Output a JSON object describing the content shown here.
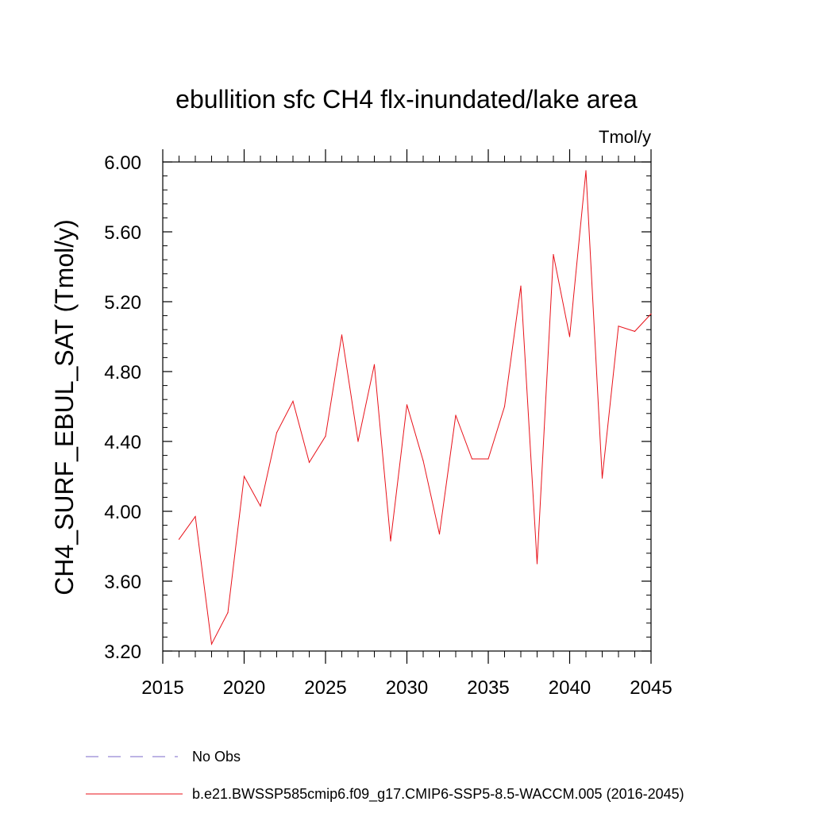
{
  "chart_data": {
    "type": "line",
    "title": "ebullition sfc CH4 flx-inundated/lake area",
    "units": "Tmol/y",
    "ylabel": "CH4_SURF_EBUL_SAT  (Tmol/y)",
    "xlabel": "",
    "xlim": [
      2015,
      2045
    ],
    "ylim": [
      3.2,
      6.0
    ],
    "xticks": [
      2015,
      2020,
      2025,
      2030,
      2035,
      2040,
      2045
    ],
    "xtick_labels": [
      "2015",
      "2020",
      "2025",
      "2030",
      "2035",
      "2040",
      "2045"
    ],
    "yticks": [
      3.2,
      3.6,
      4.0,
      4.4,
      4.8,
      5.2,
      5.6,
      6.0
    ],
    "ytick_labels": [
      "3.20",
      "3.60",
      "4.00",
      "4.40",
      "4.80",
      "5.20",
      "5.60",
      "6.00"
    ],
    "grid": false,
    "legend_position": "bottom",
    "series": [
      {
        "name": "No Obs",
        "color": "#7b68c8",
        "dash": "dashed",
        "x": [],
        "values": []
      },
      {
        "name": "b.e21.BWSSP585cmip6.f09_g17.CMIP6-SSP5-8.5-WACCM.005 (2016-2045)",
        "color": "#e8121a",
        "dash": "solid",
        "x": [
          2016,
          2017,
          2018,
          2019,
          2020,
          2021,
          2022,
          2023,
          2024,
          2025,
          2026,
          2027,
          2028,
          2029,
          2030,
          2031,
          2032,
          2033,
          2034,
          2035,
          2036,
          2037,
          2038,
          2039,
          2040,
          2041,
          2042,
          2043,
          2044,
          2045
        ],
        "values": [
          3.84,
          3.97,
          3.24,
          3.42,
          4.2,
          4.03,
          4.45,
          4.63,
          4.28,
          4.43,
          5.01,
          4.4,
          4.84,
          3.83,
          4.61,
          4.29,
          3.87,
          4.55,
          4.3,
          4.3,
          4.6,
          5.29,
          3.7,
          5.47,
          5.0,
          5.95,
          4.19,
          5.06,
          5.03,
          5.13
        ]
      }
    ]
  }
}
